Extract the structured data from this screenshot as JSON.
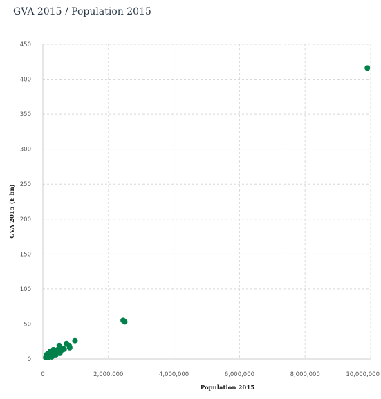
{
  "page_title": "GVA 2015 / Population 2015",
  "colors": {
    "point": "#00804a",
    "grid": "#d8d8d8",
    "axis": "#cccccc"
  },
  "chart_data": {
    "type": "scatter",
    "title": "GVA 2015 / Population 2015",
    "xlabel": "Population 2015",
    "ylabel": "GVA 2015 (£ bn)",
    "xlim": [
      0,
      10000000
    ],
    "ylim": [
      0,
      450
    ],
    "x_ticks": [
      0,
      2000000,
      4000000,
      6000000,
      8000000,
      10000000
    ],
    "x_tick_labels": [
      "0",
      "2,000,000",
      "4,000,000",
      "6,000,000",
      "8,000,000",
      "10,000,000"
    ],
    "y_ticks": [
      0,
      50,
      100,
      150,
      200,
      250,
      300,
      350,
      400,
      450
    ],
    "y_tick_labels": [
      "0",
      "50",
      "100",
      "150",
      "200",
      "250",
      "300",
      "350",
      "400",
      "450"
    ],
    "grid": true,
    "points": [
      {
        "x": 9900000,
        "y": 416
      },
      {
        "x": 2450000,
        "y": 55
      },
      {
        "x": 2500000,
        "y": 53
      },
      {
        "x": 980000,
        "y": 26
      },
      {
        "x": 720000,
        "y": 22
      },
      {
        "x": 800000,
        "y": 19
      },
      {
        "x": 820000,
        "y": 16
      },
      {
        "x": 500000,
        "y": 19
      },
      {
        "x": 650000,
        "y": 14
      },
      {
        "x": 560000,
        "y": 12
      },
      {
        "x": 480000,
        "y": 10
      },
      {
        "x": 420000,
        "y": 9
      },
      {
        "x": 380000,
        "y": 12
      },
      {
        "x": 350000,
        "y": 8
      },
      {
        "x": 320000,
        "y": 13
      },
      {
        "x": 300000,
        "y": 7
      },
      {
        "x": 280000,
        "y": 10
      },
      {
        "x": 260000,
        "y": 6
      },
      {
        "x": 240000,
        "y": 9
      },
      {
        "x": 220000,
        "y": 5
      },
      {
        "x": 200000,
        "y": 7
      },
      {
        "x": 180000,
        "y": 4
      },
      {
        "x": 160000,
        "y": 6
      },
      {
        "x": 140000,
        "y": 3
      },
      {
        "x": 120000,
        "y": 5
      },
      {
        "x": 100000,
        "y": 3
      },
      {
        "x": 90000,
        "y": 2
      },
      {
        "x": 200000,
        "y": 3
      },
      {
        "x": 150000,
        "y": 2
      },
      {
        "x": 250000,
        "y": 4
      },
      {
        "x": 300000,
        "y": 5
      },
      {
        "x": 110000,
        "y": 6
      },
      {
        "x": 170000,
        "y": 8
      },
      {
        "x": 230000,
        "y": 11
      },
      {
        "x": 270000,
        "y": 3
      },
      {
        "x": 330000,
        "y": 6
      },
      {
        "x": 400000,
        "y": 6
      },
      {
        "x": 450000,
        "y": 13
      },
      {
        "x": 600000,
        "y": 15
      },
      {
        "x": 520000,
        "y": 8
      }
    ]
  }
}
